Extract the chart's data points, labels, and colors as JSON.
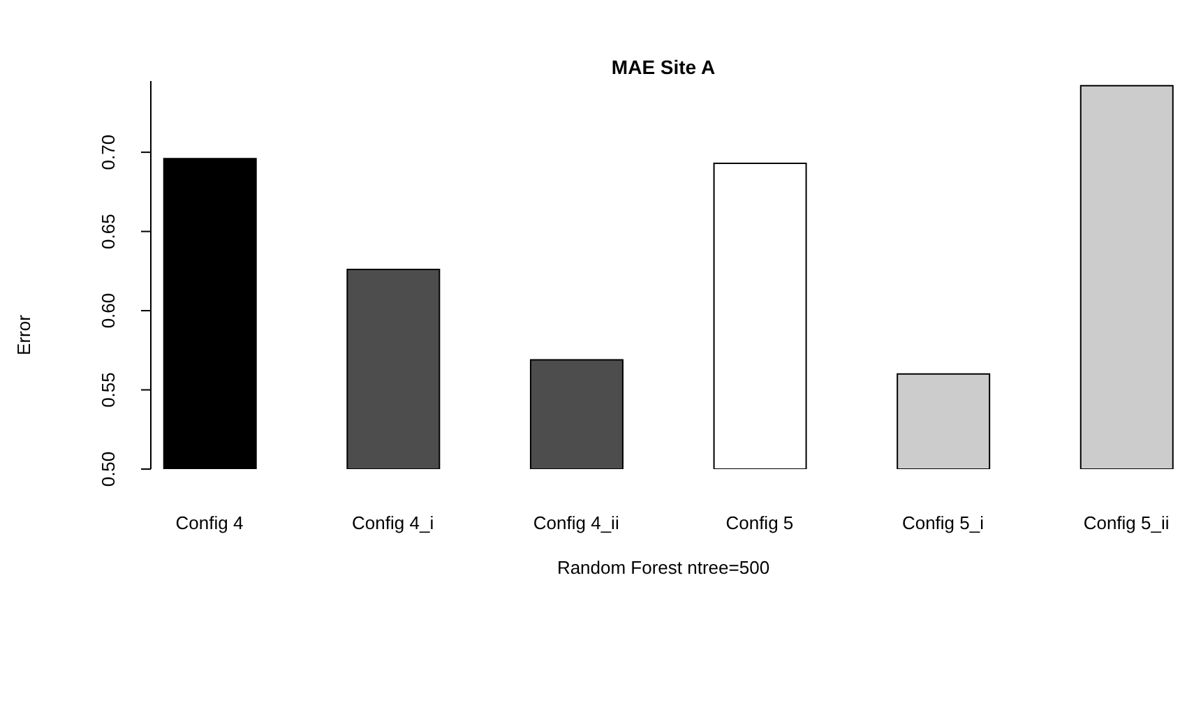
{
  "chart_data": {
    "type": "bar",
    "title": "MAE Site A",
    "xlabel": "Random Forest ntree=500",
    "ylabel": "Error",
    "categories": [
      "Config 4",
      "Config 4_i",
      "Config 4_ii",
      "Config 5",
      "Config 5_i",
      "Config 5_ii"
    ],
    "values": [
      0.696,
      0.626,
      0.569,
      0.693,
      0.56,
      0.742
    ],
    "colors": [
      "#000000",
      "#4d4d4d",
      "#4d4d4d",
      "#ffffff",
      "#cccccc",
      "#cccccc"
    ],
    "ylim": [
      0.5,
      0.745
    ],
    "yticks": [
      {
        "value": 0.5,
        "label": "0.50"
      },
      0.55,
      {
        "value": 0.6,
        "label": "0.60"
      },
      0.65,
      {
        "value": 0.7,
        "label": "0.70"
      }
    ]
  }
}
